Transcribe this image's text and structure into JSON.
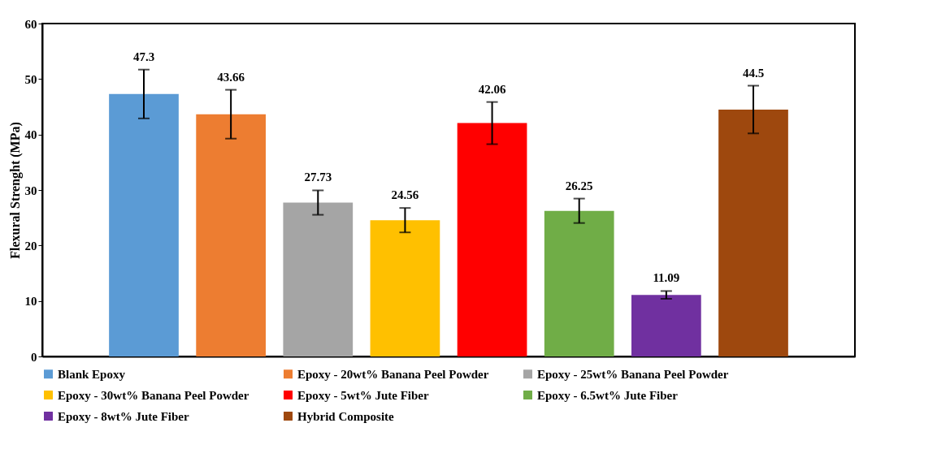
{
  "chart_data": {
    "type": "bar",
    "ylabel": "Flexural Strenght (MPa)",
    "categories": [
      null
    ],
    "series": [
      {
        "name": "Blank Epoxy",
        "color": "#5b9bd5",
        "values": [
          47.3
        ],
        "errors": [
          4.4
        ]
      },
      {
        "name": "Epoxy - 20wt% Banana Peel Powder",
        "color": "#ed7d31",
        "values": [
          43.66
        ],
        "errors": [
          4.4
        ]
      },
      {
        "name": "Epoxy - 25wt% Banana Peel Powder",
        "color": "#a5a5a5",
        "values": [
          27.73
        ],
        "errors": [
          2.2
        ]
      },
      {
        "name": "Epoxy - 30wt% Banana Peel Powder",
        "color": "#ffc000",
        "values": [
          24.56
        ],
        "errors": [
          2.2
        ]
      },
      {
        "name": "Epoxy - 5wt% Jute Fiber",
        "color": "#ff0000",
        "values": [
          42.06
        ],
        "errors": [
          3.8
        ]
      },
      {
        "name": "Epoxy - 6.5wt% Jute Fiber",
        "color": "#70ad47",
        "values": [
          26.25
        ],
        "errors": [
          2.2
        ]
      },
      {
        "name": "Epoxy - 8wt% Jute Fiber",
        "color": "#7030a0",
        "values": [
          11.09
        ],
        "errors": [
          0.7
        ]
      },
      {
        "name": "Hybrid Composite",
        "color": "#9e480e",
        "values": [
          44.5
        ],
        "errors": [
          4.3
        ]
      }
    ],
    "ylim": [
      0,
      60
    ],
    "yticks": [
      0,
      10,
      20,
      30,
      40,
      50,
      60
    ],
    "data_labels": true,
    "grid": false,
    "legend": "bottom"
  }
}
